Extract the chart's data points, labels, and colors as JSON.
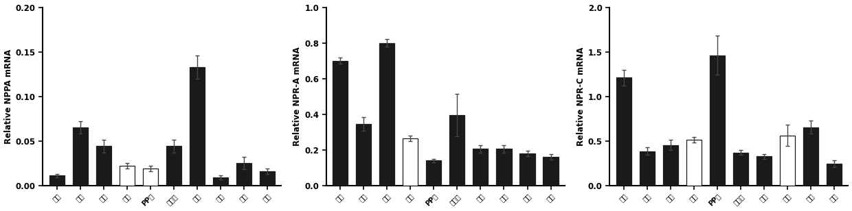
{
  "panels": [
    {
      "ylabel": "Relative NPPA mRNA",
      "ylim": [
        0,
        0.2
      ],
      "yticks": [
        0.0,
        0.05,
        0.1,
        0.15,
        0.2
      ],
      "categories": [
        "肏脏",
        "脾脏",
        "肾脏",
        "阔屾",
        "PP结",
        "淋巴结",
        "胠腔",
        "空肠",
        "回肠",
        "结肠"
      ],
      "values": [
        0.011,
        0.065,
        0.044,
        0.022,
        0.019,
        0.044,
        0.133,
        0.009,
        0.025,
        0.016
      ],
      "errors": [
        0.002,
        0.007,
        0.007,
        0.003,
        0.003,
        0.007,
        0.013,
        0.002,
        0.007,
        0.003
      ],
      "white_bars": [
        3,
        4
      ]
    },
    {
      "ylabel": "Relative NPR-A mRNA",
      "ylim": [
        0,
        1.0
      ],
      "yticks": [
        0.0,
        0.2,
        0.4,
        0.6,
        0.8,
        1.0
      ],
      "categories": [
        "肏脏",
        "脾脏",
        "肾脏",
        "阔屾",
        "PP结",
        "淋巴结",
        "胠腔",
        "空肠",
        "回肠",
        "结肠"
      ],
      "values": [
        0.7,
        0.345,
        0.8,
        0.265,
        0.14,
        0.395,
        0.205,
        0.205,
        0.18,
        0.16
      ],
      "errors": [
        0.018,
        0.04,
        0.02,
        0.015,
        0.01,
        0.12,
        0.02,
        0.022,
        0.015,
        0.015
      ],
      "white_bars": [
        3
      ]
    },
    {
      "ylabel": "Relative NPR-C mRNA",
      "ylim": [
        0,
        2.0
      ],
      "yticks": [
        0.0,
        0.5,
        1.0,
        1.5,
        2.0
      ],
      "categories": [
        "肏脏",
        "脾脏",
        "肾脏",
        "阔屾",
        "PP结",
        "淋巴结",
        "胠腔",
        "空肠",
        "回肠",
        "结肠"
      ],
      "values": [
        1.21,
        0.385,
        0.455,
        0.51,
        1.46,
        0.37,
        0.325,
        0.56,
        0.655,
        0.245
      ],
      "errors": [
        0.09,
        0.04,
        0.06,
        0.03,
        0.22,
        0.025,
        0.03,
        0.12,
        0.075,
        0.04
      ],
      "white_bars": [
        3,
        7
      ]
    }
  ],
  "bar_color": "#1a1a1a",
  "bar_edge_color": "#1a1a1a",
  "white_bar_face": "#ffffff",
  "error_color": "#444444",
  "bar_width": 0.65,
  "tick_fontsize": 7.0,
  "ylabel_fontsize": 8.5,
  "ytick_fontsize": 8.5
}
